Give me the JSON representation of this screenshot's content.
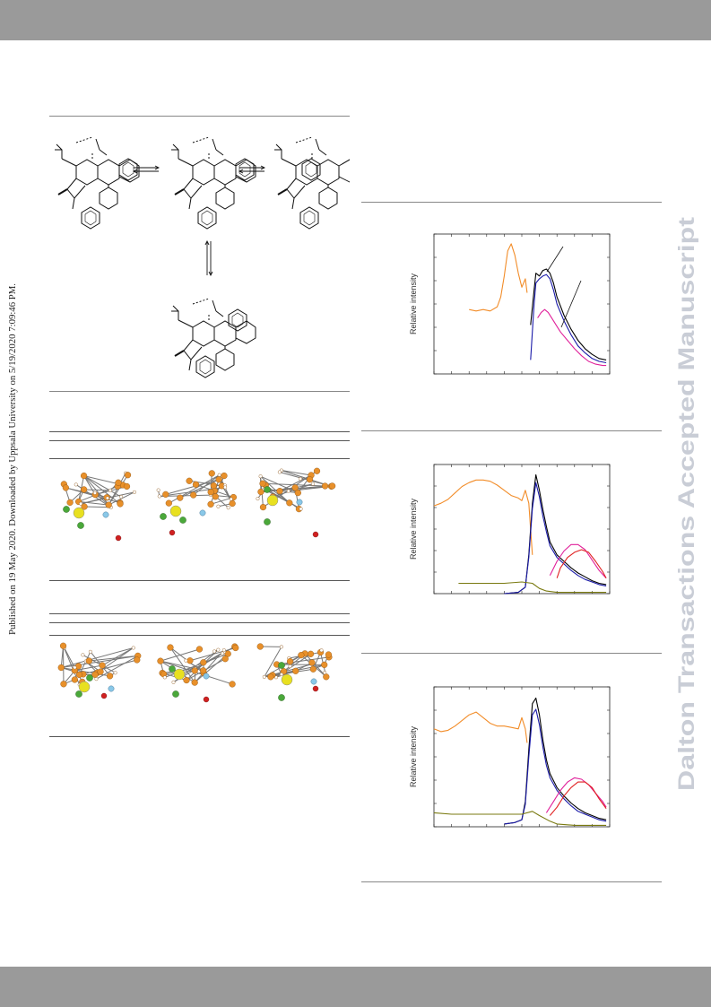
{
  "watermark": {
    "text": "Dalton Transactions Accepted Manuscript",
    "color": "#c9cdd6"
  },
  "side_note": {
    "text": "Published on 19 May 2020. Downloaded by Uppsala University on 5/19/2020 7:09:46 PM."
  },
  "colors": {
    "orange": "#f28c28",
    "black": "#000000",
    "blue": "#1a1aa8",
    "magenta": "#e0209a",
    "red": "#e02020",
    "olive": "#7a7a10"
  },
  "chart_data": [
    {
      "type": "line",
      "ylabel": "Relative intensity",
      "xlim": [
        0,
        100
      ],
      "ylim": [
        0,
        100
      ],
      "series": [
        {
          "color": "#f28c28",
          "x": [
            20,
            24,
            28,
            32,
            36,
            38,
            40,
            42,
            44,
            46,
            48,
            50,
            52,
            53
          ],
          "y": [
            46,
            45,
            46,
            45,
            48,
            55,
            70,
            88,
            93,
            85,
            72,
            62,
            68,
            58
          ]
        },
        {
          "color": "#000000",
          "x": [
            55,
            57,
            58,
            60,
            62,
            64,
            66,
            68,
            70,
            74,
            78,
            82,
            86,
            90,
            94,
            98
          ],
          "y": [
            35,
            60,
            72,
            70,
            74,
            75,
            72,
            65,
            55,
            42,
            32,
            24,
            18,
            14,
            11,
            10
          ]
        },
        {
          "color": "#1a1aa8",
          "x": [
            55,
            57,
            58,
            60,
            62,
            64,
            66,
            68,
            70,
            74,
            78,
            82,
            86,
            90,
            94,
            98
          ],
          "y": [
            10,
            50,
            65,
            68,
            70,
            71,
            68,
            60,
            50,
            38,
            28,
            20,
            15,
            11,
            9,
            8
          ]
        },
        {
          "color": "#e0209a",
          "x": [
            59,
            61,
            63,
            65,
            67,
            69,
            72,
            76,
            80,
            84,
            88,
            92,
            96,
            98
          ],
          "y": [
            40,
            44,
            46,
            44,
            40,
            36,
            30,
            24,
            18,
            13,
            9,
            7,
            6,
            6
          ]
        }
      ]
    },
    {
      "type": "line",
      "ylabel": "Relative intensity",
      "xlim": [
        0,
        100
      ],
      "ylim": [
        0,
        100
      ],
      "series": [
        {
          "color": "#f28c28",
          "x": [
            0,
            4,
            8,
            12,
            16,
            20,
            24,
            28,
            32,
            36,
            40,
            44,
            48,
            50,
            52,
            54,
            56
          ],
          "y": [
            68,
            70,
            73,
            78,
            83,
            86,
            88,
            88,
            87,
            84,
            80,
            76,
            74,
            72,
            80,
            70,
            30
          ]
        },
        {
          "color": "#000000",
          "x": [
            40,
            48,
            52,
            54,
            56,
            58,
            60,
            62,
            64,
            66,
            70,
            74,
            78,
            82,
            86,
            90,
            94,
            98
          ],
          "y": [
            0,
            1,
            5,
            30,
            70,
            92,
            80,
            65,
            52,
            40,
            30,
            25,
            20,
            16,
            13,
            10,
            8,
            7
          ]
        },
        {
          "color": "#1a1aa8",
          "x": [
            40,
            48,
            52,
            54,
            56,
            58,
            60,
            62,
            64,
            66,
            70,
            74,
            78,
            82,
            86,
            90,
            94,
            98
          ],
          "y": [
            0,
            1,
            5,
            28,
            66,
            86,
            75,
            60,
            48,
            37,
            28,
            23,
            18,
            14,
            11,
            9,
            7,
            6
          ]
        },
        {
          "color": "#e0209a",
          "x": [
            66,
            70,
            74,
            78,
            82,
            86,
            90,
            94,
            98
          ],
          "y": [
            14,
            25,
            33,
            38,
            38,
            34,
            26,
            18,
            12
          ]
        },
        {
          "color": "#e02020",
          "x": [
            70,
            72,
            76,
            80,
            84,
            88,
            92,
            96,
            98
          ],
          "y": [
            12,
            20,
            28,
            32,
            34,
            32,
            25,
            17,
            12
          ]
        },
        {
          "color": "#7a7a10",
          "x": [
            14,
            20,
            30,
            40,
            50,
            56,
            60,
            64,
            70,
            80,
            90,
            98
          ],
          "y": [
            8,
            8,
            8,
            8,
            9,
            8,
            4,
            2,
            1,
            1,
            1,
            1
          ]
        }
      ]
    },
    {
      "type": "line",
      "ylabel": "Relative intensity",
      "xlim": [
        0,
        100
      ],
      "ylim": [
        0,
        100
      ],
      "series": [
        {
          "color": "#f28c28",
          "x": [
            0,
            4,
            8,
            12,
            16,
            20,
            24,
            28,
            32,
            36,
            40,
            44,
            48,
            50,
            52,
            53
          ],
          "y": [
            70,
            68,
            69,
            72,
            76,
            80,
            82,
            78,
            74,
            72,
            72,
            71,
            70,
            78,
            70,
            60
          ]
        },
        {
          "color": "#000000",
          "x": [
            40,
            46,
            50,
            52,
            54,
            56,
            58,
            60,
            62,
            64,
            66,
            70,
            74,
            78,
            82,
            86,
            90,
            94,
            98
          ],
          "y": [
            2,
            3,
            5,
            18,
            55,
            88,
            92,
            80,
            62,
            48,
            38,
            28,
            22,
            17,
            13,
            10,
            8,
            6,
            5
          ]
        },
        {
          "color": "#1a1aa8",
          "x": [
            40,
            46,
            50,
            52,
            54,
            56,
            58,
            60,
            62,
            64,
            66,
            70,
            74,
            78,
            82,
            86,
            90,
            94,
            98
          ],
          "y": [
            2,
            3,
            5,
            16,
            50,
            80,
            84,
            73,
            57,
            44,
            35,
            26,
            20,
            15,
            11,
            9,
            7,
            5,
            4
          ]
        },
        {
          "color": "#e0209a",
          "x": [
            64,
            68,
            72,
            76,
            80,
            84,
            88,
            92,
            96,
            98
          ],
          "y": [
            10,
            18,
            26,
            32,
            35,
            34,
            30,
            24,
            18,
            14
          ]
        },
        {
          "color": "#e02020",
          "x": [
            66,
            70,
            74,
            78,
            82,
            86,
            90,
            94,
            98
          ],
          "y": [
            8,
            14,
            22,
            28,
            32,
            32,
            28,
            20,
            13
          ]
        },
        {
          "color": "#7a7a10",
          "x": [
            0,
            10,
            20,
            30,
            40,
            50,
            56,
            60,
            66,
            70,
            80,
            90,
            98
          ],
          "y": [
            10,
            9,
            9,
            9,
            9,
            9,
            11,
            8,
            4,
            2,
            1,
            1,
            1
          ]
        }
      ]
    }
  ]
}
